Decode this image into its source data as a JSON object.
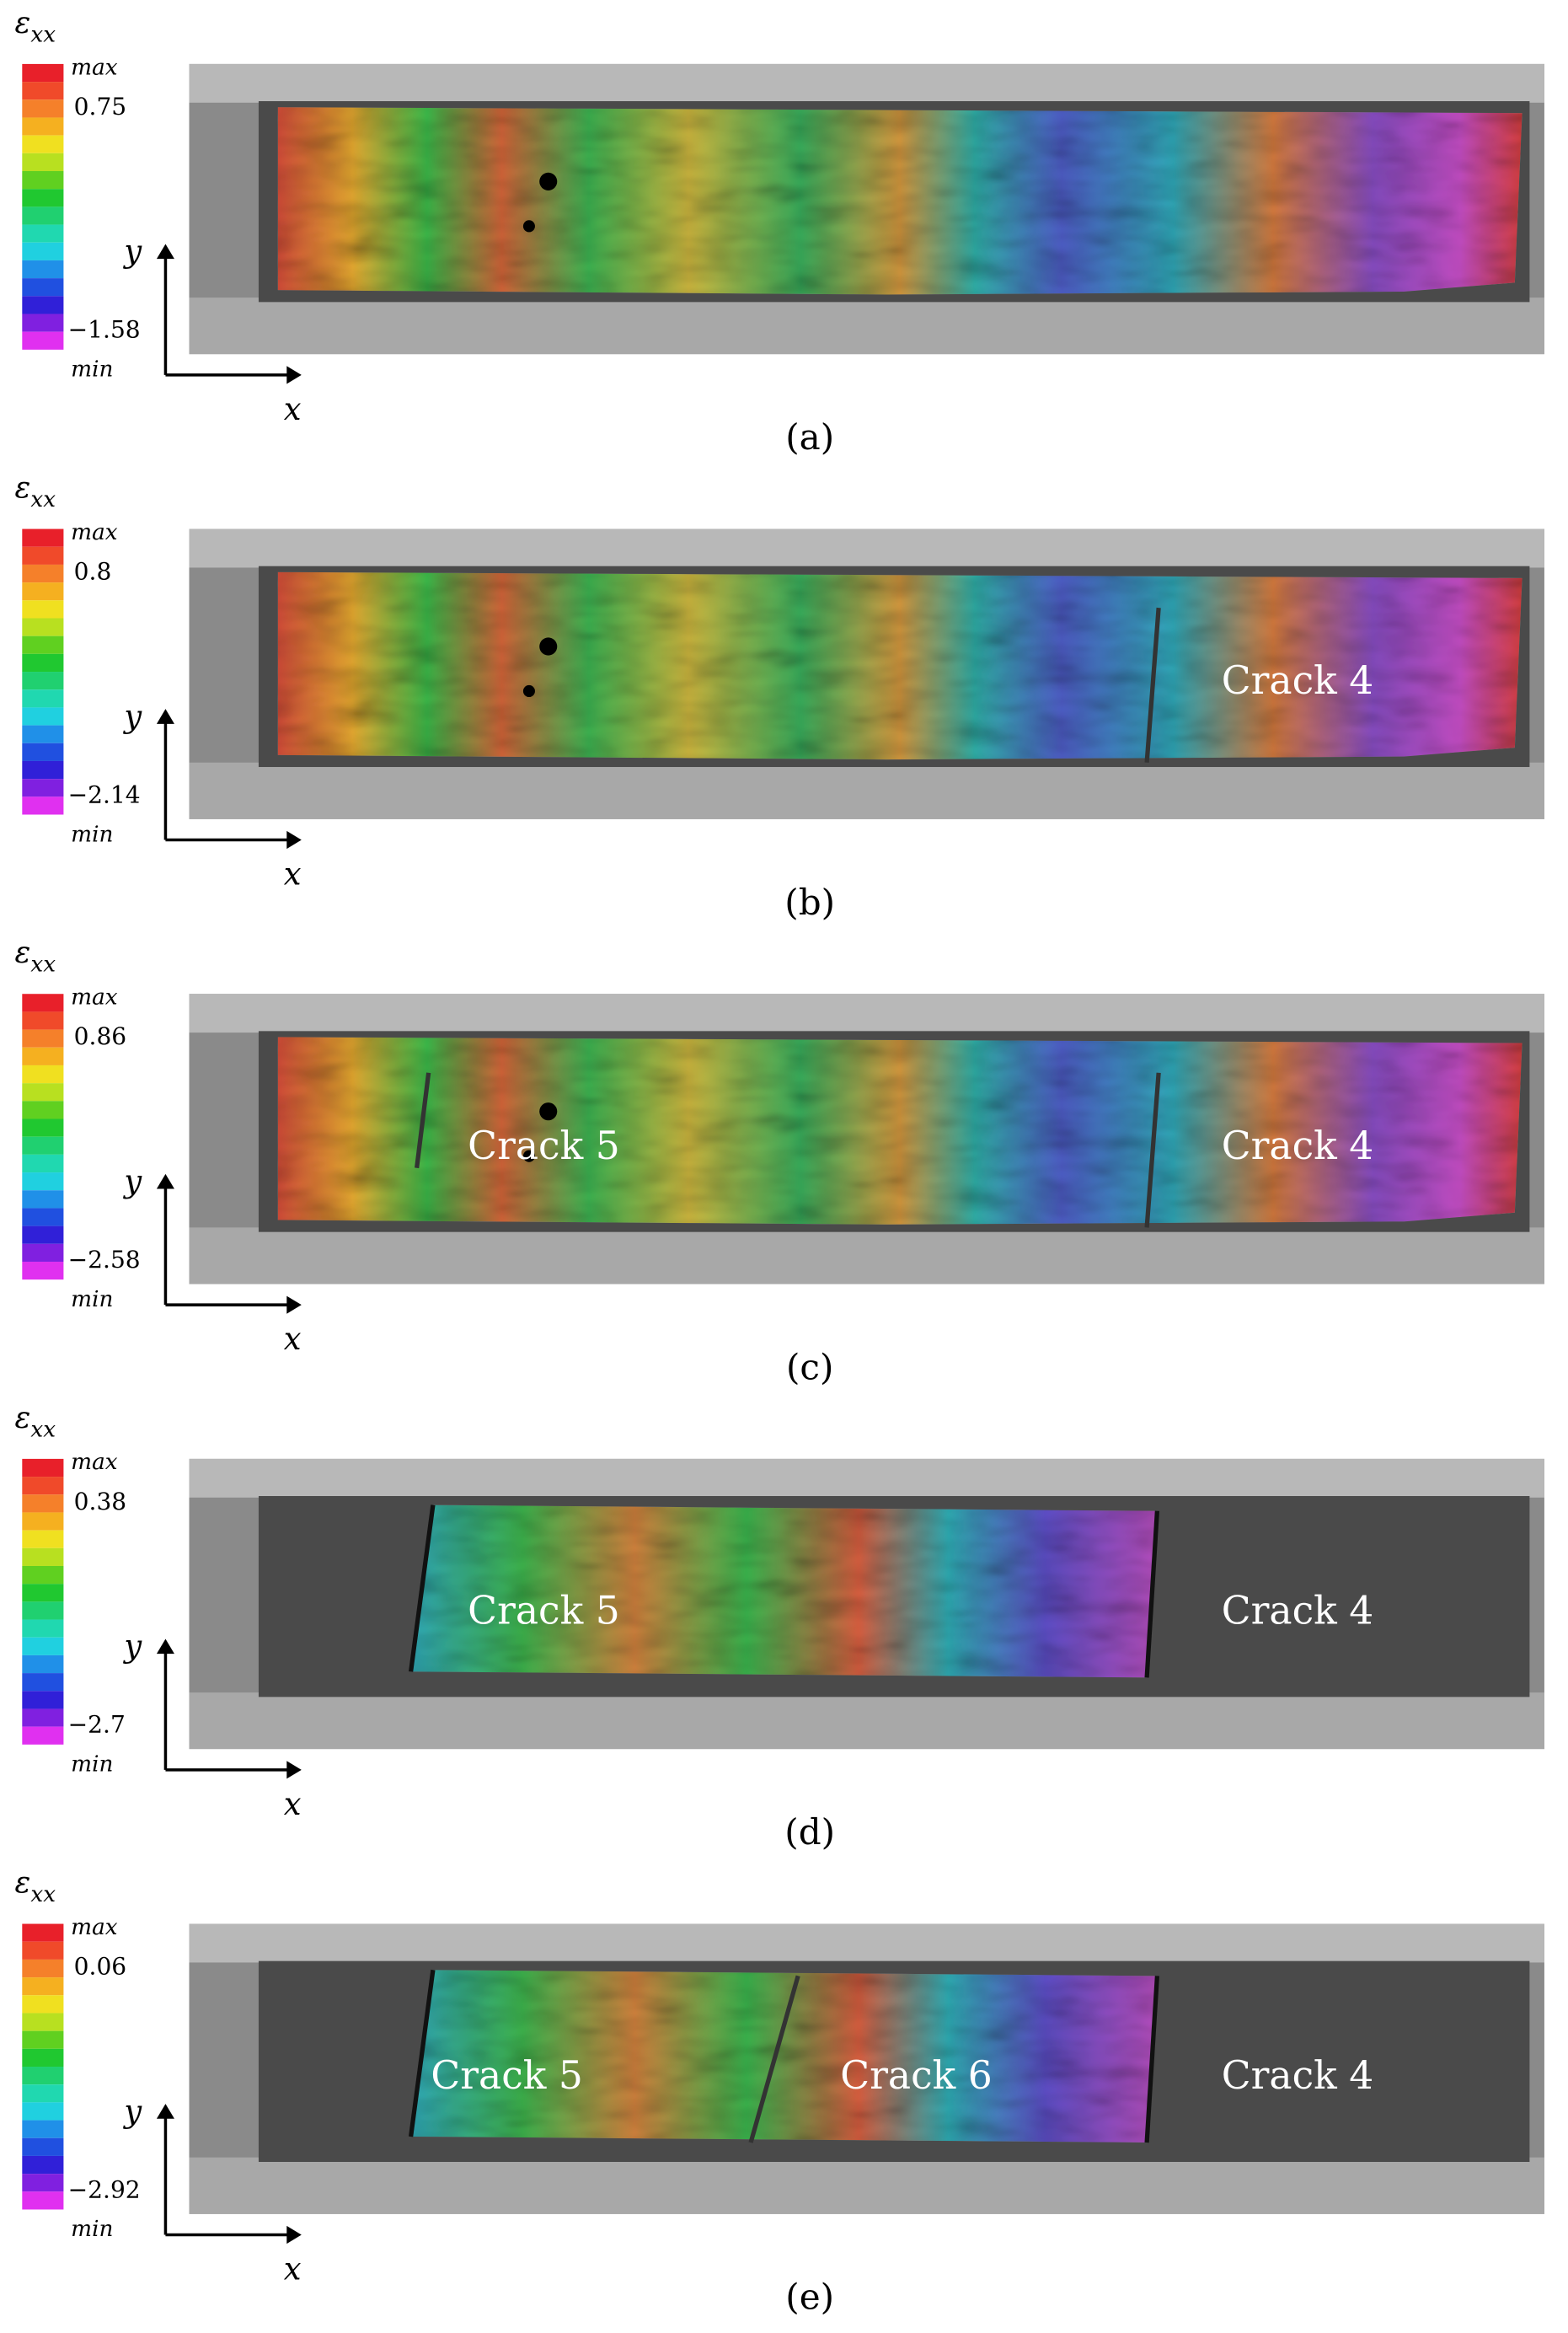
{
  "panels": [
    {
      "caption": "(a)",
      "colorbar": {
        "symbol": "ε",
        "subscript": "xx",
        "max_label": "max",
        "upper": "0.75",
        "lower": "−1.58",
        "min_label": "min"
      },
      "axes": {
        "x": "x",
        "y": "y"
      },
      "cracks": []
    },
    {
      "caption": "(b)",
      "colorbar": {
        "symbol": "ε",
        "subscript": "xx",
        "max_label": "max",
        "upper": "0.8",
        "lower": "−2.14",
        "min_label": "min"
      },
      "axes": {
        "x": "x",
        "y": "y"
      },
      "cracks": [
        "Crack 4"
      ]
    },
    {
      "caption": "(c)",
      "colorbar": {
        "symbol": "ε",
        "subscript": "xx",
        "max_label": "max",
        "upper": "0.86",
        "lower": "−2.58",
        "min_label": "min"
      },
      "axes": {
        "x": "x",
        "y": "y"
      },
      "cracks": [
        "Crack 5",
        "Crack 4"
      ]
    },
    {
      "caption": "(d)",
      "colorbar": {
        "symbol": "ε",
        "subscript": "xx",
        "max_label": "max",
        "upper": "0.38",
        "lower": "−2.7",
        "min_label": "min"
      },
      "axes": {
        "x": "x",
        "y": "y"
      },
      "cracks": [
        "Crack 5",
        "Crack 4"
      ]
    },
    {
      "caption": "(e)",
      "colorbar": {
        "symbol": "ε",
        "subscript": "xx",
        "max_label": "max",
        "upper": "0.06",
        "lower": "−2.92",
        "min_label": "min"
      },
      "axes": {
        "x": "x",
        "y": "y"
      },
      "cracks": [
        "Crack 5",
        "Crack 6",
        "Crack 4"
      ]
    }
  ]
}
